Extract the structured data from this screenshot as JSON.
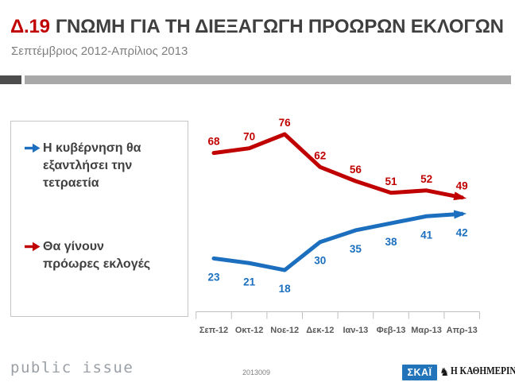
{
  "header": {
    "number": "Δ.19",
    "title": "ΓΝΩΜΗ ΓΙΑ ΤΗ ΔΙΕΞΑΓΩΓΗ ΠΡΟΩΡΩΝ ΕΚΛΟΓΩΝ",
    "subtitle": "Σεπτέμβριος 2012-Απρίλιος 2013"
  },
  "colors": {
    "accent_red": "#C00000",
    "accent_blue": "#1B6FBE",
    "title_gray": "#3F3F3F",
    "axis_gray": "#BFBFBF",
    "skai_blue": "#2173BA"
  },
  "legend": {
    "items": [
      {
        "label": "Η κυβέρνηση θα εξαντλήσει την τετραετία",
        "color": "#1B6FBE"
      },
      {
        "label": "Θα γίνουν πρόωρες εκλογές",
        "color": "#C00000"
      }
    ]
  },
  "chart_data": {
    "type": "line",
    "title": "ΓΝΩΜΗ ΓΙΑ ΤΗ ΔΙΕΞΑΓΩΓΗ ΠΡΟΩΡΩΝ ΕΚΛΟΓΩΝ",
    "subtitle": "Σεπτέμβριος 2012-Απρίλιος 2013",
    "categories": [
      "Σεπ-12",
      "Οκτ-12",
      "Νοε-12",
      "Δεκ-12",
      "Ιαν-13",
      "Φεβ-13",
      "Μαρ-13",
      "Απρ-13"
    ],
    "series": [
      {
        "name": "Θα γίνουν πρόωρες εκλογές",
        "color": "#C00000",
        "values": [
          68,
          70,
          76,
          62,
          56,
          51,
          52,
          49
        ]
      },
      {
        "name": "Η κυβέρνηση θα εξαντλήσει την τετραετία",
        "color": "#1B6FBE",
        "values": [
          23,
          21,
          18,
          30,
          35,
          38,
          41,
          42
        ]
      }
    ],
    "xlabel": "",
    "ylabel": "",
    "ylim": [
      0,
      100
    ],
    "grid": false,
    "y_axis_visible": false,
    "data_labels": true,
    "line_end": "arrow",
    "legend_position": "left",
    "axis_color": "#BFBFBF"
  },
  "footer": {
    "brand": "public issue",
    "doc_number": "2013009",
    "skai_label": "ΣΚΑΪ",
    "kathimerini_label": "Η ΚΑΘΗΜΕΡΙΝΗ",
    "emblem_glyph": "♞"
  }
}
